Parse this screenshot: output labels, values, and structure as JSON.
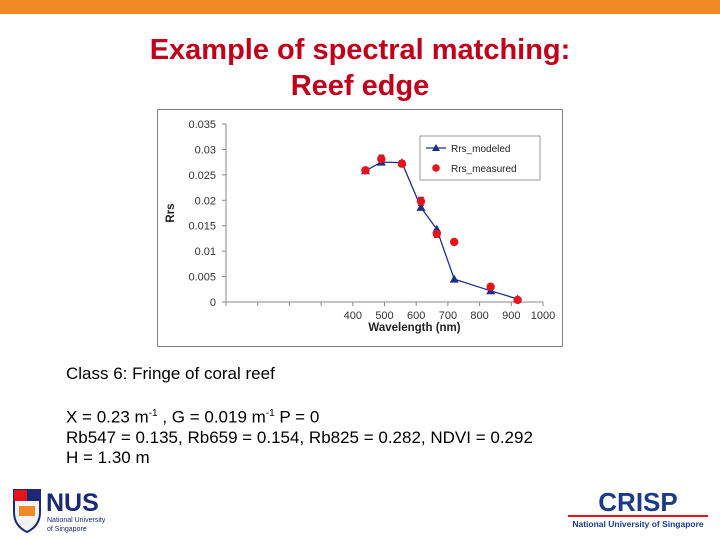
{
  "slide": {
    "title_line1": "Example of spectral matching:",
    "title_line2": "Reef edge",
    "accent_color": "#f08a24",
    "title_color": "#c0001a"
  },
  "info": {
    "class_line": "Class 6: Fringe of coral reef",
    "x_prefix": "X = 0.23 m",
    "x_exp": "-1",
    "g_prefix": " ,  G = 0.019 m",
    "g_exp": "-1",
    "p_text": " P = 0",
    "rb_line": "Rb547 = 0.135, Rb659 =  0.154, Rb825 = 0.282, NDVI = 0.292",
    "h_line": "H = 1.30 m"
  },
  "logos": {
    "nus_text": "NUS",
    "nus_sub1": "National University",
    "nus_sub2": "of Singapore",
    "crisp_text": "CRISP",
    "crisp_sub": "National University of Singapore"
  },
  "chart_data": {
    "type": "line",
    "xlabel": "Wavelength (nm)",
    "ylabel": "Rrs",
    "xlim": [
      0,
      1000
    ],
    "ylim": [
      0,
      0.035
    ],
    "xticks": [
      0,
      100,
      200,
      300,
      400,
      500,
      600,
      700,
      800,
      900,
      1000
    ],
    "visible_xtick_labels": [
      "400",
      "500",
      "600",
      "700",
      "800",
      "900",
      "1000"
    ],
    "yticks": [
      0,
      0.005,
      0.01,
      0.015,
      0.02,
      0.025,
      0.03,
      0.035
    ],
    "ytick_labels": [
      "0",
      "0.005",
      "0.01",
      "0.015",
      "0.02",
      "0.025",
      "0.03",
      "0.035"
    ],
    "legend_position": "top-right",
    "series": [
      {
        "name": "Rrs_modeled",
        "marker": "triangle",
        "color": "#1f2d8a",
        "x": [
          440,
          490,
          555,
          615,
          665,
          720,
          835,
          920
        ],
        "y": [
          0.0258,
          0.0275,
          0.0274,
          0.0186,
          0.0143,
          0.0045,
          0.0022,
          0.0006
        ]
      },
      {
        "name": "Rrs_measured",
        "marker": "circle",
        "color": "#e8141c",
        "x": [
          440,
          490,
          555,
          615,
          665,
          720,
          835,
          920
        ],
        "y": [
          0.0259,
          0.0281,
          0.0272,
          0.0198,
          0.0134,
          0.0118,
          0.003,
          0.0004
        ],
        "error": [
          0.0005,
          0.0008,
          0.0006,
          0.0008,
          0.0007,
          0.0004,
          0.0004,
          0.0003
        ]
      }
    ]
  }
}
